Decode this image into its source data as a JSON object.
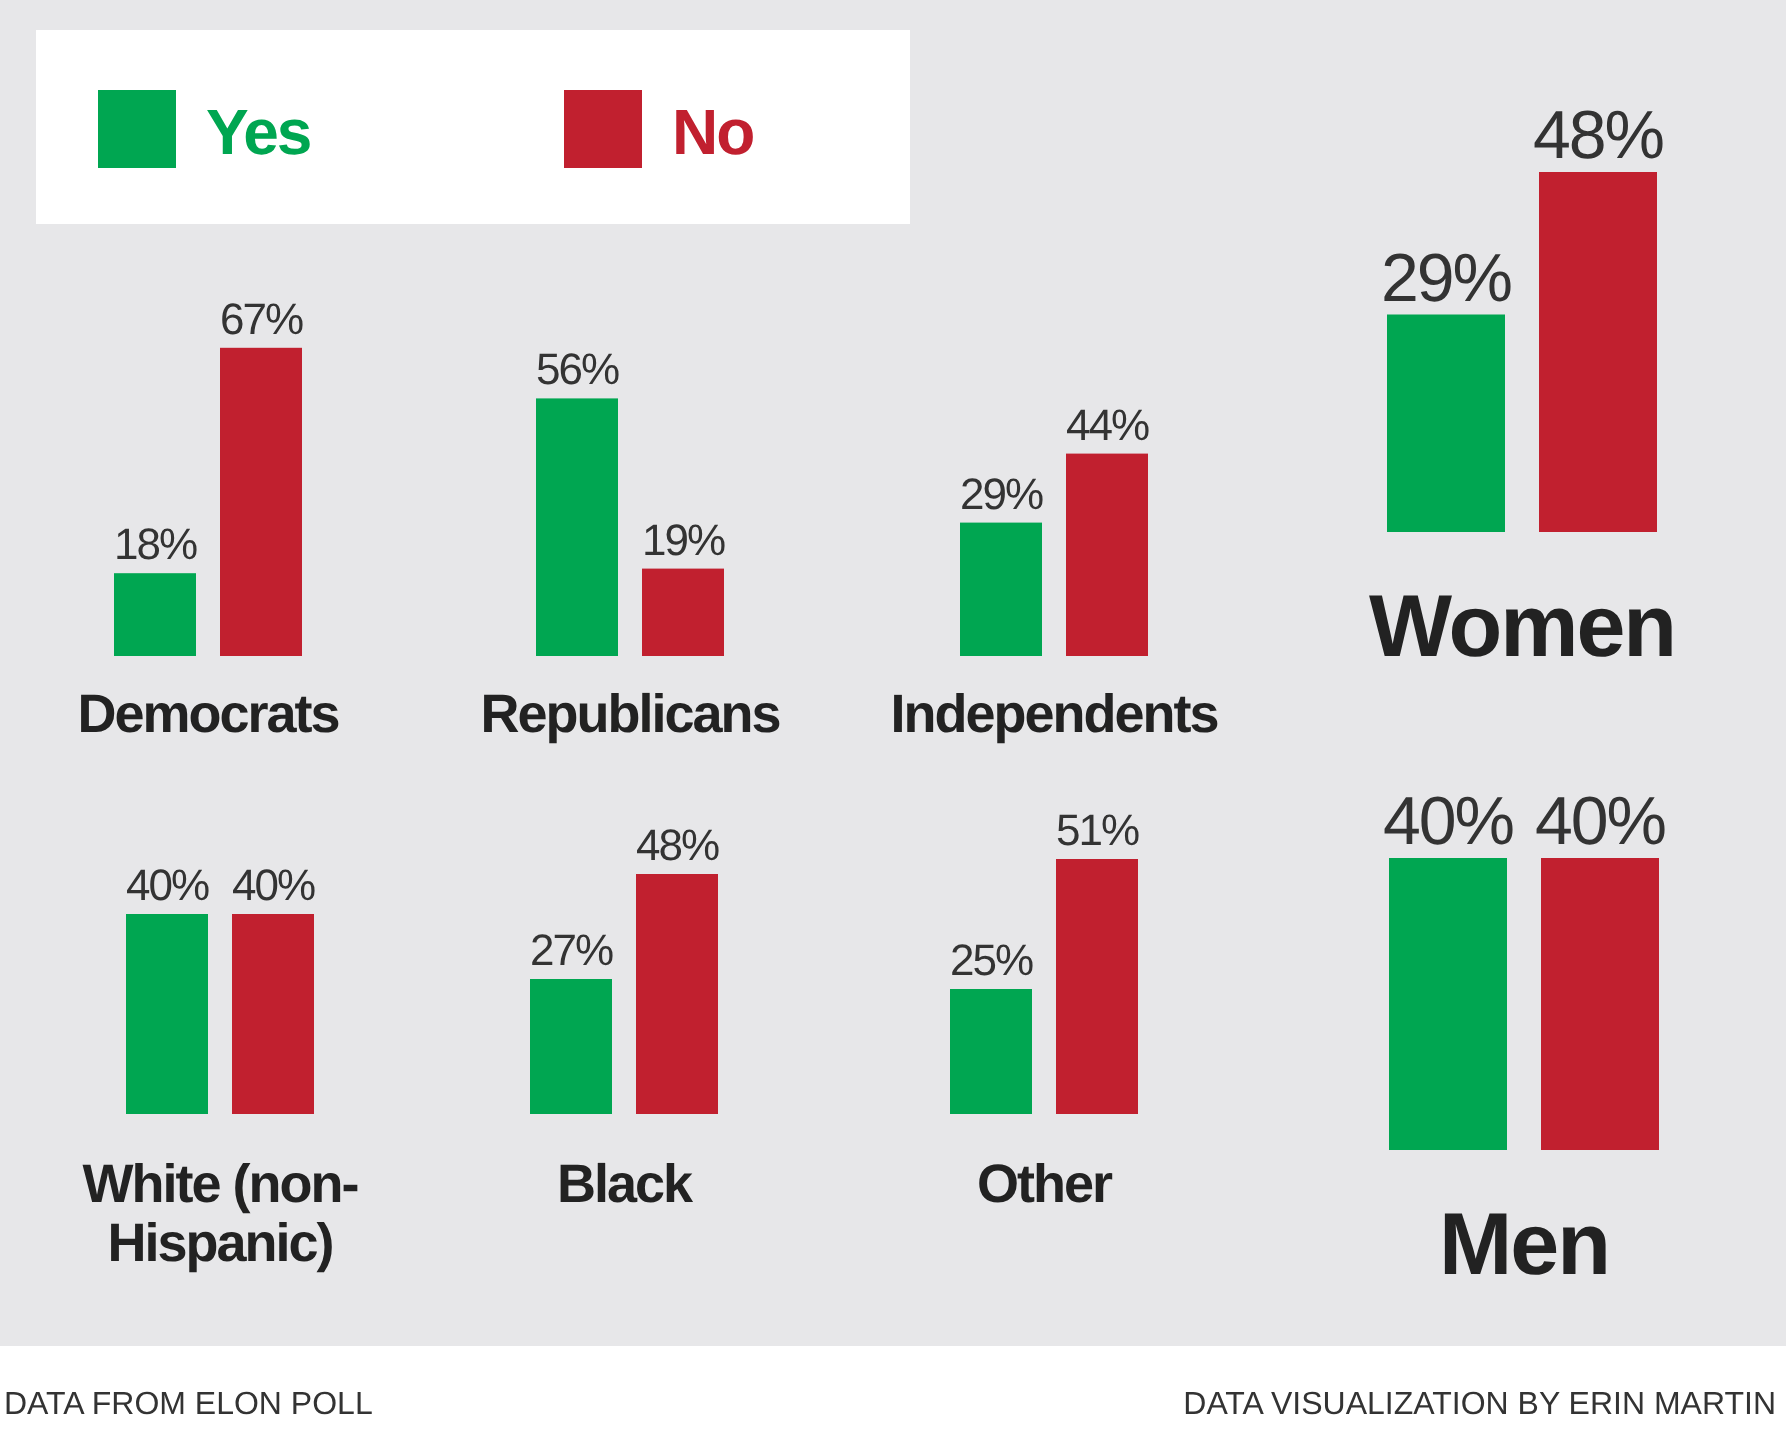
{
  "chart_data": [
    {
      "type": "bar",
      "categories": [
        "Democrats"
      ],
      "series": [
        {
          "name": "Yes",
          "color": "#00a651",
          "values": [
            18
          ],
          "value_labels": [
            "18%"
          ]
        },
        {
          "name": "No",
          "color": "#c1202f",
          "values": [
            67
          ],
          "value_labels": [
            "67%"
          ]
        }
      ],
      "legend": "top right",
      "annotations": [
        "DATA FROM ELON POLL",
        "DATA VISUALIZATION BY ERIN MARTIN"
      ]
    },
    {
      "type": "bar",
      "categories": [
        "Republicans"
      ],
      "series": [
        {
          "color": "#00a651",
          "values": [
            56
          ],
          "value_labels": [
            "56%"
          ]
        },
        {
          "color": "#c1202f",
          "values": [
            19
          ],
          "value_labels": [
            "19%"
          ]
        }
      ]
    },
    {
      "type": "bar",
      "categories": [
        "Independents"
      ],
      "series": [
        {
          "color": "#00a651",
          "values": [
            29
          ],
          "value_labels": [
            "29%"
          ]
        },
        {
          "color": "#c1202f",
          "values": [
            44
          ],
          "value_labels": [
            "44%"
          ]
        }
      ]
    },
    {
      "type": "bar",
      "categories": [
        "Women"
      ],
      "series": [
        {
          "color": "#00a651",
          "values": [
            29
          ],
          "value_labels": [
            "29%"
          ]
        },
        {
          "color": "#c1202f",
          "values": [
            48
          ],
          "value_labels": [
            "48%"
          ]
        }
      ]
    },
    {
      "type": "bar",
      "categories": [
        "White (non-Hispanic)"
      ],
      "series": [
        {
          "color": "#00a651",
          "values": [
            40
          ],
          "value_labels": [
            "40%"
          ]
        },
        {
          "color": "#c1202f",
          "values": [
            40
          ],
          "value_labels": [
            "40%"
          ]
        }
      ]
    },
    {
      "type": "bar",
      "categories": [
        "Black"
      ],
      "series": [
        {
          "color": "#00a651",
          "values": [
            27
          ],
          "value_labels": [
            "27%"
          ]
        },
        {
          "color": "#c1202f",
          "values": [
            48
          ],
          "value_labels": [
            "48%"
          ]
        }
      ]
    },
    {
      "type": "bar",
      "categories": [
        "Other"
      ],
      "series": [
        {
          "color": "#00a651",
          "values": [
            25
          ],
          "value_labels": [
            "25%"
          ]
        },
        {
          "color": "#c1202f",
          "values": [
            51
          ],
          "value_labels": [
            "51%"
          ]
        }
      ]
    },
    {
      "type": "bar",
      "categories": [
        "Men"
      ],
      "series": [
        {
          "color": "#00a651",
          "values": [
            40
          ],
          "value_labels": [
            "40%"
          ]
        },
        {
          "color": "#c1202f",
          "values": [
            40
          ],
          "value_labels": [
            "40%"
          ]
        }
      ]
    }
  ]
}
